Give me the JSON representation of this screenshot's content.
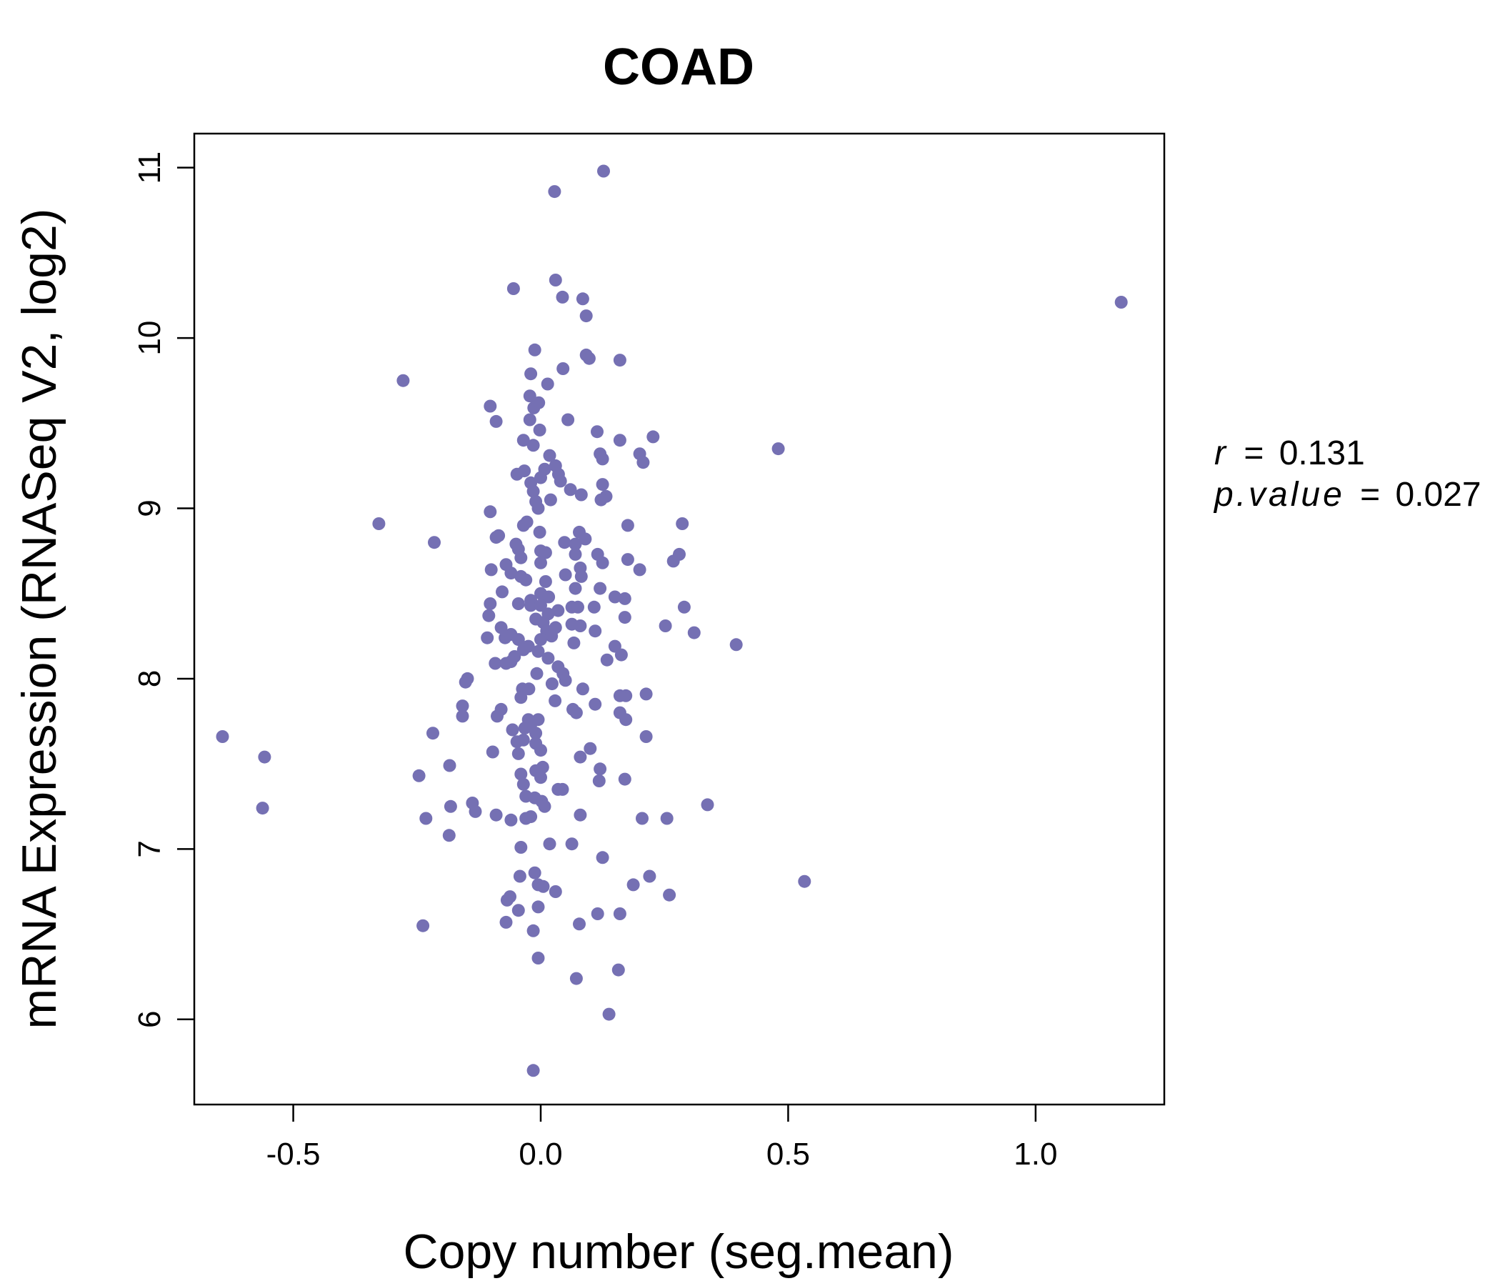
{
  "chart_data": {
    "type": "scatter",
    "title": "COAD",
    "xlabel": "Copy number (seg.mean)",
    "ylabel": "mRNA Expression (RNASeq V2, log2)",
    "xlim": [
      -0.7,
      1.26
    ],
    "ylim": [
      5.5,
      11.2
    ],
    "x_ticks": [
      -0.5,
      0.0,
      0.5,
      1.0
    ],
    "x_tick_labels": [
      "-0.5",
      "0.0",
      "0.5",
      "1.0"
    ],
    "y_ticks": [
      6,
      7,
      8,
      9,
      10,
      11
    ],
    "y_tick_labels": [
      "6",
      "7",
      "8",
      "9",
      "10",
      "11"
    ],
    "point_color": "#7570b3",
    "title_color": "#7570b3",
    "annotations": {
      "r_label": "r",
      "r_value": "0.131",
      "p_label": "p.value",
      "p_value": "0.027",
      "equals": "="
    },
    "points": [
      [
        0.127,
        10.98
      ],
      [
        0.028,
        10.86
      ],
      [
        0.03,
        10.34
      ],
      [
        0.044,
        10.24
      ],
      [
        0.085,
        10.23
      ],
      [
        -0.055,
        10.29
      ],
      [
        0.092,
        10.13
      ],
      [
        1.173,
        10.21
      ],
      [
        -0.278,
        9.75
      ],
      [
        -0.012,
        9.93
      ],
      [
        0.092,
        9.9
      ],
      [
        0.098,
        9.88
      ],
      [
        0.16,
        9.87
      ],
      [
        0.045,
        9.82
      ],
      [
        -0.02,
        9.79
      ],
      [
        0.014,
        9.73
      ],
      [
        -0.022,
        9.66
      ],
      [
        -0.102,
        9.6
      ],
      [
        -0.004,
        9.62
      ],
      [
        -0.014,
        9.59
      ],
      [
        -0.09,
        9.51
      ],
      [
        0.055,
        9.52
      ],
      [
        -0.022,
        9.52
      ],
      [
        -0.002,
        9.46
      ],
      [
        0.114,
        9.45
      ],
      [
        0.227,
        9.42
      ],
      [
        0.16,
        9.4
      ],
      [
        -0.035,
        9.4
      ],
      [
        -0.015,
        9.37
      ],
      [
        0.48,
        9.35
      ],
      [
        0.018,
        9.31
      ],
      [
        0.12,
        9.32
      ],
      [
        0.2,
        9.32
      ],
      [
        0.125,
        9.29
      ],
      [
        0.207,
        9.27
      ],
      [
        0.03,
        9.25
      ],
      [
        -0.033,
        9.22
      ],
      [
        0.008,
        9.23
      ],
      [
        0.036,
        9.2
      ],
      [
        -0.048,
        9.2
      ],
      [
        -0.02,
        9.15
      ],
      [
        0.0,
        9.18
      ],
      [
        0.04,
        9.16
      ],
      [
        0.125,
        9.14
      ],
      [
        0.06,
        9.11
      ],
      [
        -0.015,
        9.1
      ],
      [
        0.082,
        9.08
      ],
      [
        0.132,
        9.07
      ],
      [
        0.122,
        9.05
      ],
      [
        0.02,
        9.05
      ],
      [
        -0.01,
        9.04
      ],
      [
        -0.005,
        9.0
      ],
      [
        -0.102,
        8.98
      ],
      [
        -0.028,
        8.92
      ],
      [
        -0.035,
        8.9
      ],
      [
        -0.327,
        8.91
      ],
      [
        0.176,
        8.9
      ],
      [
        0.286,
        8.91
      ],
      [
        -0.002,
        8.86
      ],
      [
        0.078,
        8.86
      ],
      [
        -0.085,
        8.84
      ],
      [
        -0.09,
        8.83
      ],
      [
        0.09,
        8.82
      ],
      [
        -0.215,
        8.8
      ],
      [
        0.048,
        8.8
      ],
      [
        0.07,
        8.79
      ],
      [
        -0.05,
        8.79
      ],
      [
        -0.045,
        8.76
      ],
      [
        0.0,
        8.75
      ],
      [
        0.01,
        8.74
      ],
      [
        0.115,
        8.73
      ],
      [
        0.28,
        8.73
      ],
      [
        0.07,
        8.73
      ],
      [
        -0.04,
        8.71
      ],
      [
        0.176,
        8.7
      ],
      [
        0.268,
        8.69
      ],
      [
        0.125,
        8.68
      ],
      [
        0.0,
        8.68
      ],
      [
        -0.07,
        8.67
      ],
      [
        -0.1,
        8.64
      ],
      [
        0.08,
        8.65
      ],
      [
        0.2,
        8.64
      ],
      [
        -0.06,
        8.62
      ],
      [
        0.05,
        8.61
      ],
      [
        0.082,
        8.6
      ],
      [
        -0.04,
        8.6
      ],
      [
        -0.03,
        8.58
      ],
      [
        0.01,
        8.57
      ],
      [
        0.12,
        8.53
      ],
      [
        0.07,
        8.53
      ],
      [
        -0.078,
        8.51
      ],
      [
        0.0,
        8.5
      ],
      [
        0.016,
        8.48
      ],
      [
        0.15,
        8.48
      ],
      [
        0.17,
        8.47
      ],
      [
        -0.02,
        8.46
      ],
      [
        -0.102,
        8.44
      ],
      [
        -0.045,
        8.44
      ],
      [
        -0.02,
        8.43
      ],
      [
        0.0,
        8.43
      ],
      [
        0.063,
        8.42
      ],
      [
        0.075,
        8.42
      ],
      [
        0.108,
        8.42
      ],
      [
        0.29,
        8.42
      ],
      [
        0.035,
        8.4
      ],
      [
        0.015,
        8.38
      ],
      [
        -0.105,
        8.37
      ],
      [
        0.17,
        8.36
      ],
      [
        -0.01,
        8.35
      ],
      [
        0.005,
        8.33
      ],
      [
        0.063,
        8.32
      ],
      [
        0.08,
        8.31
      ],
      [
        0.252,
        8.31
      ],
      [
        -0.08,
        8.3
      ],
      [
        0.03,
        8.3
      ],
      [
        0.012,
        8.28
      ],
      [
        0.11,
        8.28
      ],
      [
        0.31,
        8.27
      ],
      [
        -0.06,
        8.26
      ],
      [
        -0.072,
        8.24
      ],
      [
        -0.108,
        8.24
      ],
      [
        0.022,
        8.25
      ],
      [
        0.0,
        8.23
      ],
      [
        -0.045,
        8.23
      ],
      [
        0.067,
        8.21
      ],
      [
        0.395,
        8.2
      ],
      [
        0.15,
        8.19
      ],
      [
        -0.025,
        8.19
      ],
      [
        -0.035,
        8.17
      ],
      [
        -0.005,
        8.16
      ],
      [
        0.163,
        8.14
      ],
      [
        -0.053,
        8.13
      ],
      [
        0.015,
        8.12
      ],
      [
        0.134,
        8.11
      ],
      [
        -0.06,
        8.1
      ],
      [
        -0.092,
        8.09
      ],
      [
        -0.07,
        8.09
      ],
      [
        0.035,
        8.07
      ],
      [
        0.045,
        8.03
      ],
      [
        -0.008,
        8.03
      ],
      [
        -0.148,
        8.0
      ],
      [
        0.05,
        7.99
      ],
      [
        -0.152,
        7.98
      ],
      [
        0.023,
        7.97
      ],
      [
        0.085,
        7.94
      ],
      [
        -0.037,
        7.94
      ],
      [
        -0.024,
        7.94
      ],
      [
        0.213,
        7.91
      ],
      [
        0.16,
        7.9
      ],
      [
        0.172,
        7.9
      ],
      [
        -0.04,
        7.89
      ],
      [
        0.029,
        7.87
      ],
      [
        0.11,
        7.85
      ],
      [
        -0.158,
        7.84
      ],
      [
        0.065,
        7.82
      ],
      [
        -0.08,
        7.82
      ],
      [
        0.072,
        7.8
      ],
      [
        0.16,
        7.8
      ],
      [
        -0.158,
        7.78
      ],
      [
        -0.088,
        7.78
      ],
      [
        0.172,
        7.76
      ],
      [
        -0.005,
        7.76
      ],
      [
        -0.025,
        7.76
      ],
      [
        -0.02,
        7.73
      ],
      [
        -0.032,
        7.71
      ],
      [
        -0.057,
        7.7
      ],
      [
        -0.218,
        7.68
      ],
      [
        -0.01,
        7.68
      ],
      [
        0.213,
        7.66
      ],
      [
        -0.643,
        7.66
      ],
      [
        -0.035,
        7.64
      ],
      [
        -0.048,
        7.63
      ],
      [
        -0.01,
        7.62
      ],
      [
        0.0,
        7.58
      ],
      [
        0.1,
        7.59
      ],
      [
        -0.097,
        7.57
      ],
      [
        -0.045,
        7.56
      ],
      [
        -0.558,
        7.54
      ],
      [
        0.08,
        7.54
      ],
      [
        -0.184,
        7.49
      ],
      [
        0.004,
        7.48
      ],
      [
        0.12,
        7.47
      ],
      [
        -0.01,
        7.46
      ],
      [
        -0.04,
        7.44
      ],
      [
        -0.246,
        7.43
      ],
      [
        0.0,
        7.42
      ],
      [
        0.17,
        7.41
      ],
      [
        0.118,
        7.4
      ],
      [
        -0.035,
        7.38
      ],
      [
        0.044,
        7.35
      ],
      [
        0.035,
        7.35
      ],
      [
        -0.03,
        7.31
      ],
      [
        -0.012,
        7.3
      ],
      [
        0.002,
        7.28
      ],
      [
        0.337,
        7.26
      ],
      [
        -0.138,
        7.27
      ],
      [
        0.008,
        7.25
      ],
      [
        -0.182,
        7.25
      ],
      [
        -0.562,
        7.24
      ],
      [
        -0.132,
        7.22
      ],
      [
        -0.09,
        7.2
      ],
      [
        0.08,
        7.2
      ],
      [
        -0.02,
        7.19
      ],
      [
        0.205,
        7.18
      ],
      [
        0.255,
        7.18
      ],
      [
        -0.232,
        7.18
      ],
      [
        -0.03,
        7.18
      ],
      [
        -0.06,
        7.17
      ],
      [
        -0.185,
        7.08
      ],
      [
        0.018,
        7.03
      ],
      [
        0.063,
        7.03
      ],
      [
        -0.04,
        7.01
      ],
      [
        0.125,
        6.95
      ],
      [
        -0.012,
        6.86
      ],
      [
        -0.042,
        6.84
      ],
      [
        0.22,
        6.84
      ],
      [
        0.533,
        6.81
      ],
      [
        0.187,
        6.79
      ],
      [
        -0.005,
        6.79
      ],
      [
        0.005,
        6.78
      ],
      [
        0.03,
        6.75
      ],
      [
        0.26,
        6.73
      ],
      [
        -0.062,
        6.72
      ],
      [
        -0.068,
        6.7
      ],
      [
        -0.005,
        6.66
      ],
      [
        -0.045,
        6.64
      ],
      [
        0.115,
        6.62
      ],
      [
        0.16,
        6.62
      ],
      [
        -0.07,
        6.57
      ],
      [
        0.078,
        6.56
      ],
      [
        -0.238,
        6.55
      ],
      [
        -0.015,
        6.52
      ],
      [
        -0.005,
        6.36
      ],
      [
        0.157,
        6.29
      ],
      [
        0.072,
        6.24
      ],
      [
        0.138,
        6.03
      ],
      [
        -0.015,
        5.7
      ]
    ]
  }
}
